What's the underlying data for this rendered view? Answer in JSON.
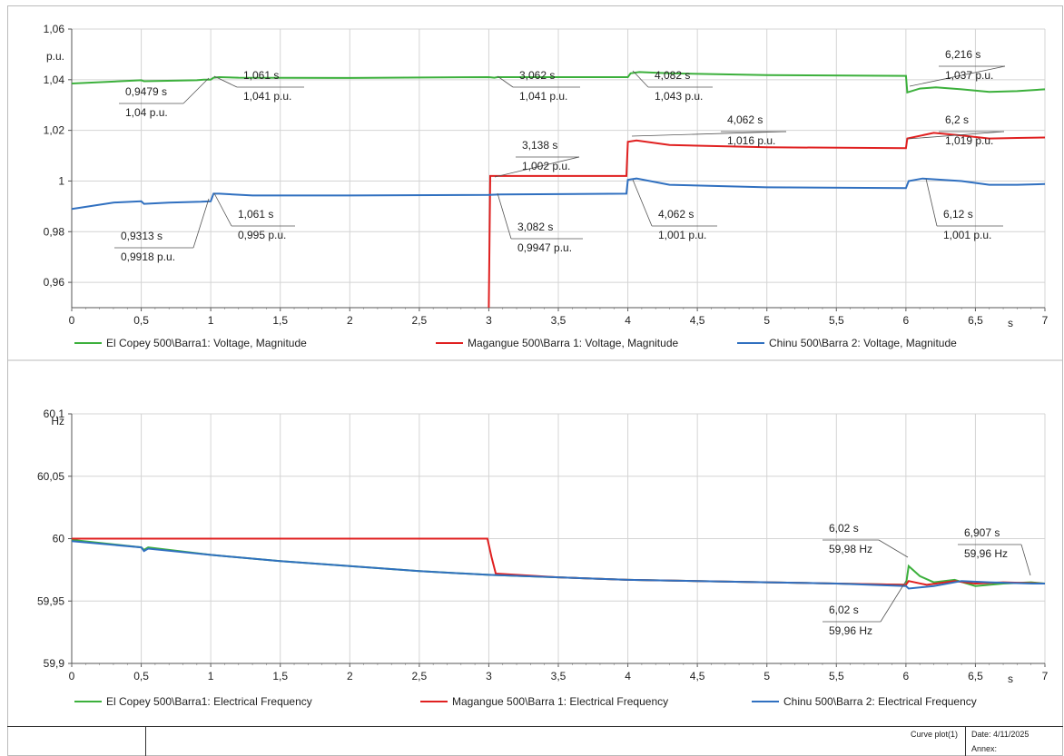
{
  "chart_data": [
    {
      "type": "line",
      "xlabel": "s",
      "ylabel": "p.u.",
      "xlim": [
        0,
        7
      ],
      "ylim": [
        0.95,
        1.06
      ],
      "x_ticks": [
        "0",
        "0,5",
        "1",
        "1,5",
        "2",
        "2,5",
        "3",
        "3,5",
        "4",
        "4,5",
        "5",
        "5,5",
        "6",
        "6,5",
        "7"
      ],
      "y_ticks": [
        "1,06",
        "1,04",
        "1,02",
        "1",
        "0,98",
        "0,96"
      ],
      "grid": true,
      "legend_position": "bottom",
      "series": [
        {
          "name": "El Copey 500\\Barra1: Voltage, Magnitude",
          "color": "#3cb03c",
          "points": [
            [
              0,
              1.0385
            ],
            [
              0.5,
              1.0398
            ],
            [
              0.52,
              1.0394
            ],
            [
              0.9,
              1.0398
            ],
            [
              0.95,
              1.04
            ],
            [
              1.0,
              1.04
            ],
            [
              1.02,
              1.0408
            ],
            [
              1.06,
              1.041
            ],
            [
              1.2,
              1.0408
            ],
            [
              2.0,
              1.0407
            ],
            [
              3.0,
              1.041
            ],
            [
              3.04,
              1.0408
            ],
            [
              3.062,
              1.041
            ],
            [
              3.5,
              1.041
            ],
            [
              4.0,
              1.041
            ],
            [
              4.02,
              1.0425
            ],
            [
              4.082,
              1.043
            ],
            [
              4.3,
              1.0425
            ],
            [
              5.0,
              1.0418
            ],
            [
              6.0,
              1.0415
            ],
            [
              6.01,
              1.035
            ],
            [
              6.1,
              1.0365
            ],
            [
              6.216,
              1.037
            ],
            [
              6.4,
              1.0362
            ],
            [
              6.6,
              1.0352
            ],
            [
              6.8,
              1.0355
            ],
            [
              7.0,
              1.0362
            ]
          ]
        },
        {
          "name": "Magangue 500\\Barra 1: Voltage, Magnitude",
          "color": "#e02020",
          "points": [
            [
              3.0,
              0.95
            ],
            [
              3.01,
              1.002
            ],
            [
              3.138,
              1.002
            ],
            [
              3.5,
              1.002
            ],
            [
              3.99,
              1.002
            ],
            [
              4.0,
              1.0155
            ],
            [
              4.062,
              1.016
            ],
            [
              4.3,
              1.0142
            ],
            [
              5.0,
              1.0133
            ],
            [
              6.0,
              1.013
            ],
            [
              6.01,
              1.0168
            ],
            [
              6.2,
              1.019
            ],
            [
              6.4,
              1.018
            ],
            [
              6.6,
              1.0168
            ],
            [
              6.8,
              1.017
            ],
            [
              7.0,
              1.0172
            ]
          ]
        },
        {
          "name": "Chinu 500\\Barra 2: Voltage, Magnitude",
          "color": "#3070c0",
          "points": [
            [
              0,
              0.989
            ],
            [
              0.3,
              0.9915
            ],
            [
              0.5,
              0.992
            ],
            [
              0.52,
              0.991
            ],
            [
              0.7,
              0.9915
            ],
            [
              0.9313,
              0.9918
            ],
            [
              1.0,
              0.992
            ],
            [
              1.02,
              0.995
            ],
            [
              1.061,
              0.995
            ],
            [
              1.3,
              0.9943
            ],
            [
              2.0,
              0.9943
            ],
            [
              3.0,
              0.9945
            ],
            [
              3.082,
              0.9947
            ],
            [
              3.99,
              0.995
            ],
            [
              4.0,
              1.0005
            ],
            [
              4.062,
              1.001
            ],
            [
              4.3,
              0.9985
            ],
            [
              5.0,
              0.9975
            ],
            [
              6.0,
              0.9972
            ],
            [
              6.02,
              1.0
            ],
            [
              6.12,
              1.001
            ],
            [
              6.4,
              1.0
            ],
            [
              6.6,
              0.9985
            ],
            [
              6.8,
              0.9985
            ],
            [
              7.0,
              0.9988
            ]
          ]
        }
      ],
      "annotations": [
        {
          "time": "0,9479 s",
          "value": "1,04 p.u."
        },
        {
          "time": "1,061 s",
          "value": "1,041 p.u."
        },
        {
          "time": "3,062 s",
          "value": "1,041 p.u."
        },
        {
          "time": "4,082 s",
          "value": "1,043 p.u."
        },
        {
          "time": "6,216 s",
          "value": "1,037 p.u."
        },
        {
          "time": "3,138 s",
          "value": "1,002 p.u."
        },
        {
          "time": "4,062 s",
          "value": "1,016 p.u."
        },
        {
          "time": "6,2 s",
          "value": "1,019 p.u."
        },
        {
          "time": "0,9313 s",
          "value": "0,9918 p.u."
        },
        {
          "time": "1,061 s",
          "value": "0,995 p.u."
        },
        {
          "time": "3,082 s",
          "value": "0,9947 p.u."
        },
        {
          "time": "4,062 s",
          "value": "1,001 p.u."
        },
        {
          "time": "6,12 s",
          "value": "1,001 p.u."
        }
      ]
    },
    {
      "type": "line",
      "xlabel": "s",
      "ylabel": "Hz",
      "xlim": [
        0,
        7
      ],
      "ylim": [
        59.9,
        60.1
      ],
      "x_ticks": [
        "0",
        "0,5",
        "1",
        "1,5",
        "2",
        "2,5",
        "3",
        "3,5",
        "4",
        "4,5",
        "5",
        "5,5",
        "6",
        "6,5",
        "7"
      ],
      "y_ticks": [
        "60,1",
        "60,05",
        "60",
        "59,95",
        "59,9"
      ],
      "grid": true,
      "legend_position": "bottom",
      "series": [
        {
          "name": "El Copey 500\\Barra1: Electrical Frequency",
          "color": "#3cb03c",
          "points": [
            [
              0,
              59.999
            ],
            [
              0.5,
              59.993
            ],
            [
              0.52,
              59.991
            ],
            [
              0.55,
              59.993
            ],
            [
              1.0,
              59.987
            ],
            [
              1.5,
              59.982
            ],
            [
              2.0,
              59.978
            ],
            [
              2.5,
              59.974
            ],
            [
              3.0,
              59.971
            ],
            [
              3.5,
              59.969
            ],
            [
              4.0,
              59.967
            ],
            [
              4.5,
              59.966
            ],
            [
              5.0,
              59.965
            ],
            [
              5.5,
              59.964
            ],
            [
              6.0,
              59.963
            ],
            [
              6.02,
              59.978
            ],
            [
              6.1,
              59.97
            ],
            [
              6.2,
              59.965
            ],
            [
              6.35,
              59.967
            ],
            [
              6.5,
              59.962
            ],
            [
              6.7,
              59.964
            ],
            [
              6.9,
              59.965
            ],
            [
              7.0,
              59.964
            ]
          ]
        },
        {
          "name": "Magangue 500\\Barra 1: Electrical Frequency",
          "color": "#e02020",
          "points": [
            [
              0,
              60.0
            ],
            [
              1.0,
              60.0
            ],
            [
              2.0,
              60.0
            ],
            [
              2.99,
              60.0
            ],
            [
              3.02,
              59.985
            ],
            [
              3.05,
              59.972
            ],
            [
              3.5,
              59.969
            ],
            [
              4.0,
              59.967
            ],
            [
              4.5,
              59.966
            ],
            [
              5.0,
              59.965
            ],
            [
              5.5,
              59.964
            ],
            [
              6.0,
              59.963
            ],
            [
              6.02,
              59.966
            ],
            [
              6.15,
              59.963
            ],
            [
              6.35,
              59.966
            ],
            [
              6.5,
              59.964
            ],
            [
              6.7,
              59.965
            ],
            [
              7.0,
              59.964
            ]
          ]
        },
        {
          "name": "Chinu 500\\Barra 2: Electrical Frequency",
          "color": "#3070c0",
          "points": [
            [
              0,
              59.998
            ],
            [
              0.5,
              59.993
            ],
            [
              0.52,
              59.99
            ],
            [
              0.55,
              59.992
            ],
            [
              1.0,
              59.987
            ],
            [
              1.5,
              59.982
            ],
            [
              2.0,
              59.978
            ],
            [
              2.5,
              59.974
            ],
            [
              3.0,
              59.971
            ],
            [
              3.5,
              59.969
            ],
            [
              4.0,
              59.967
            ],
            [
              4.5,
              59.966
            ],
            [
              5.0,
              59.965
            ],
            [
              5.5,
              59.964
            ],
            [
              6.0,
              59.962
            ],
            [
              6.02,
              59.96
            ],
            [
              6.2,
              59.962
            ],
            [
              6.4,
              59.966
            ],
            [
              6.6,
              59.965
            ],
            [
              6.907,
              59.964
            ],
            [
              7.0,
              59.964
            ]
          ]
        }
      ],
      "annotations": [
        {
          "time": "6,02 s",
          "value": "59,98 Hz"
        },
        {
          "time": "6,907 s",
          "value": "59,96 Hz"
        },
        {
          "time": "6,02 s",
          "value": "59,96 Hz"
        }
      ]
    }
  ],
  "footer": {
    "plot_name": "Curve plot(1)",
    "date": "Date: 4/11/2025",
    "annex": "Annex:"
  }
}
